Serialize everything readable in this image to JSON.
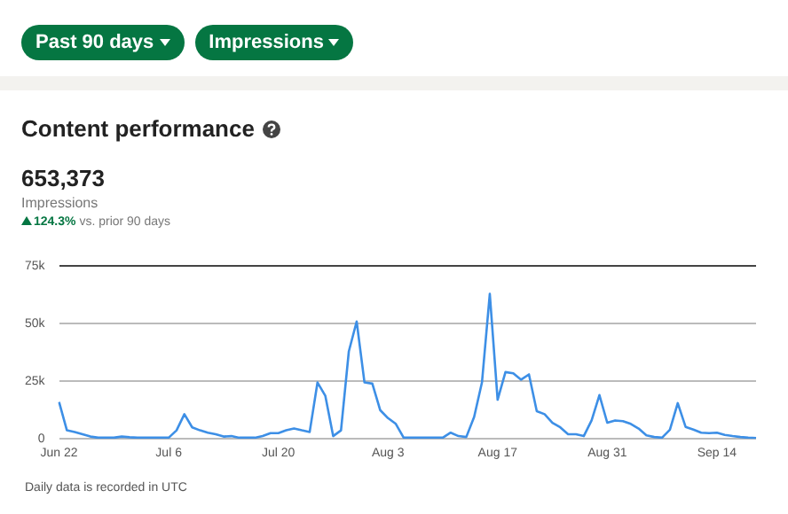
{
  "chart_data": {
    "type": "line",
    "title": "Content performance",
    "annotations": [
      "Past 90 days",
      "Impressions",
      "653,373",
      "Impressions",
      "124.3%",
      "vs. prior 90 days",
      "Daily data is recorded in UTC"
    ],
    "categories": [
      "Jun 22",
      null,
      null,
      null,
      null,
      null,
      null,
      null,
      null,
      null,
      null,
      null,
      null,
      null,
      "Jul 6",
      null,
      null,
      null,
      null,
      null,
      null,
      null,
      null,
      null,
      null,
      null,
      null,
      null,
      "Jul 20",
      null,
      null,
      null,
      null,
      null,
      null,
      null,
      null,
      null,
      null,
      null,
      null,
      null,
      "Aug 3",
      null,
      null,
      null,
      null,
      null,
      null,
      null,
      null,
      null,
      null,
      null,
      null,
      null,
      "Aug 17",
      null,
      null,
      null,
      null,
      null,
      null,
      null,
      null,
      null,
      null,
      null,
      null,
      null,
      "Aug 31",
      null,
      null,
      null,
      null,
      null,
      null,
      null,
      null,
      null,
      null,
      null,
      null,
      null,
      "Sep 14",
      null,
      null,
      null,
      null,
      null
    ],
    "series": [
      {
        "color": "#3d8fe6",
        "values": [
          16000,
          3700,
          3000,
          2000,
          1000,
          500,
          500,
          500,
          1000,
          700,
          500,
          500,
          500,
          500,
          500,
          3700,
          10700,
          5000,
          3700,
          2700,
          2000,
          1000,
          1200,
          500,
          500,
          500,
          1200,
          2500,
          2500,
          3700,
          4500,
          3700,
          3000,
          24500,
          18700,
          1200,
          3700,
          38000,
          51000,
          24500,
          24000,
          12500,
          9000,
          6500,
          500,
          500,
          500,
          500,
          500,
          500,
          2700,
          1200,
          800,
          9500,
          24500,
          63000,
          17000,
          29000,
          28500,
          25700,
          28000,
          12000,
          10700,
          7000,
          5000,
          2000,
          2000,
          1200,
          8000,
          19000,
          7000,
          8000,
          7700,
          6500,
          4500,
          1500,
          800,
          500,
          4000,
          15500,
          5200,
          4000,
          2700,
          2500,
          2700,
          1700,
          1200,
          800,
          500,
          300
        ]
      }
    ],
    "ylim": [
      0,
      75000
    ],
    "yticks": [
      {
        "value": 0,
        "label": "0"
      },
      {
        "value": 25000,
        "label": "25k"
      },
      {
        "value": 50000,
        "label": "50k"
      },
      {
        "value": 75000,
        "label": "75k"
      }
    ],
    "grid": "y",
    "marker": "none",
    "line_style": "solid",
    "legend": false
  }
}
